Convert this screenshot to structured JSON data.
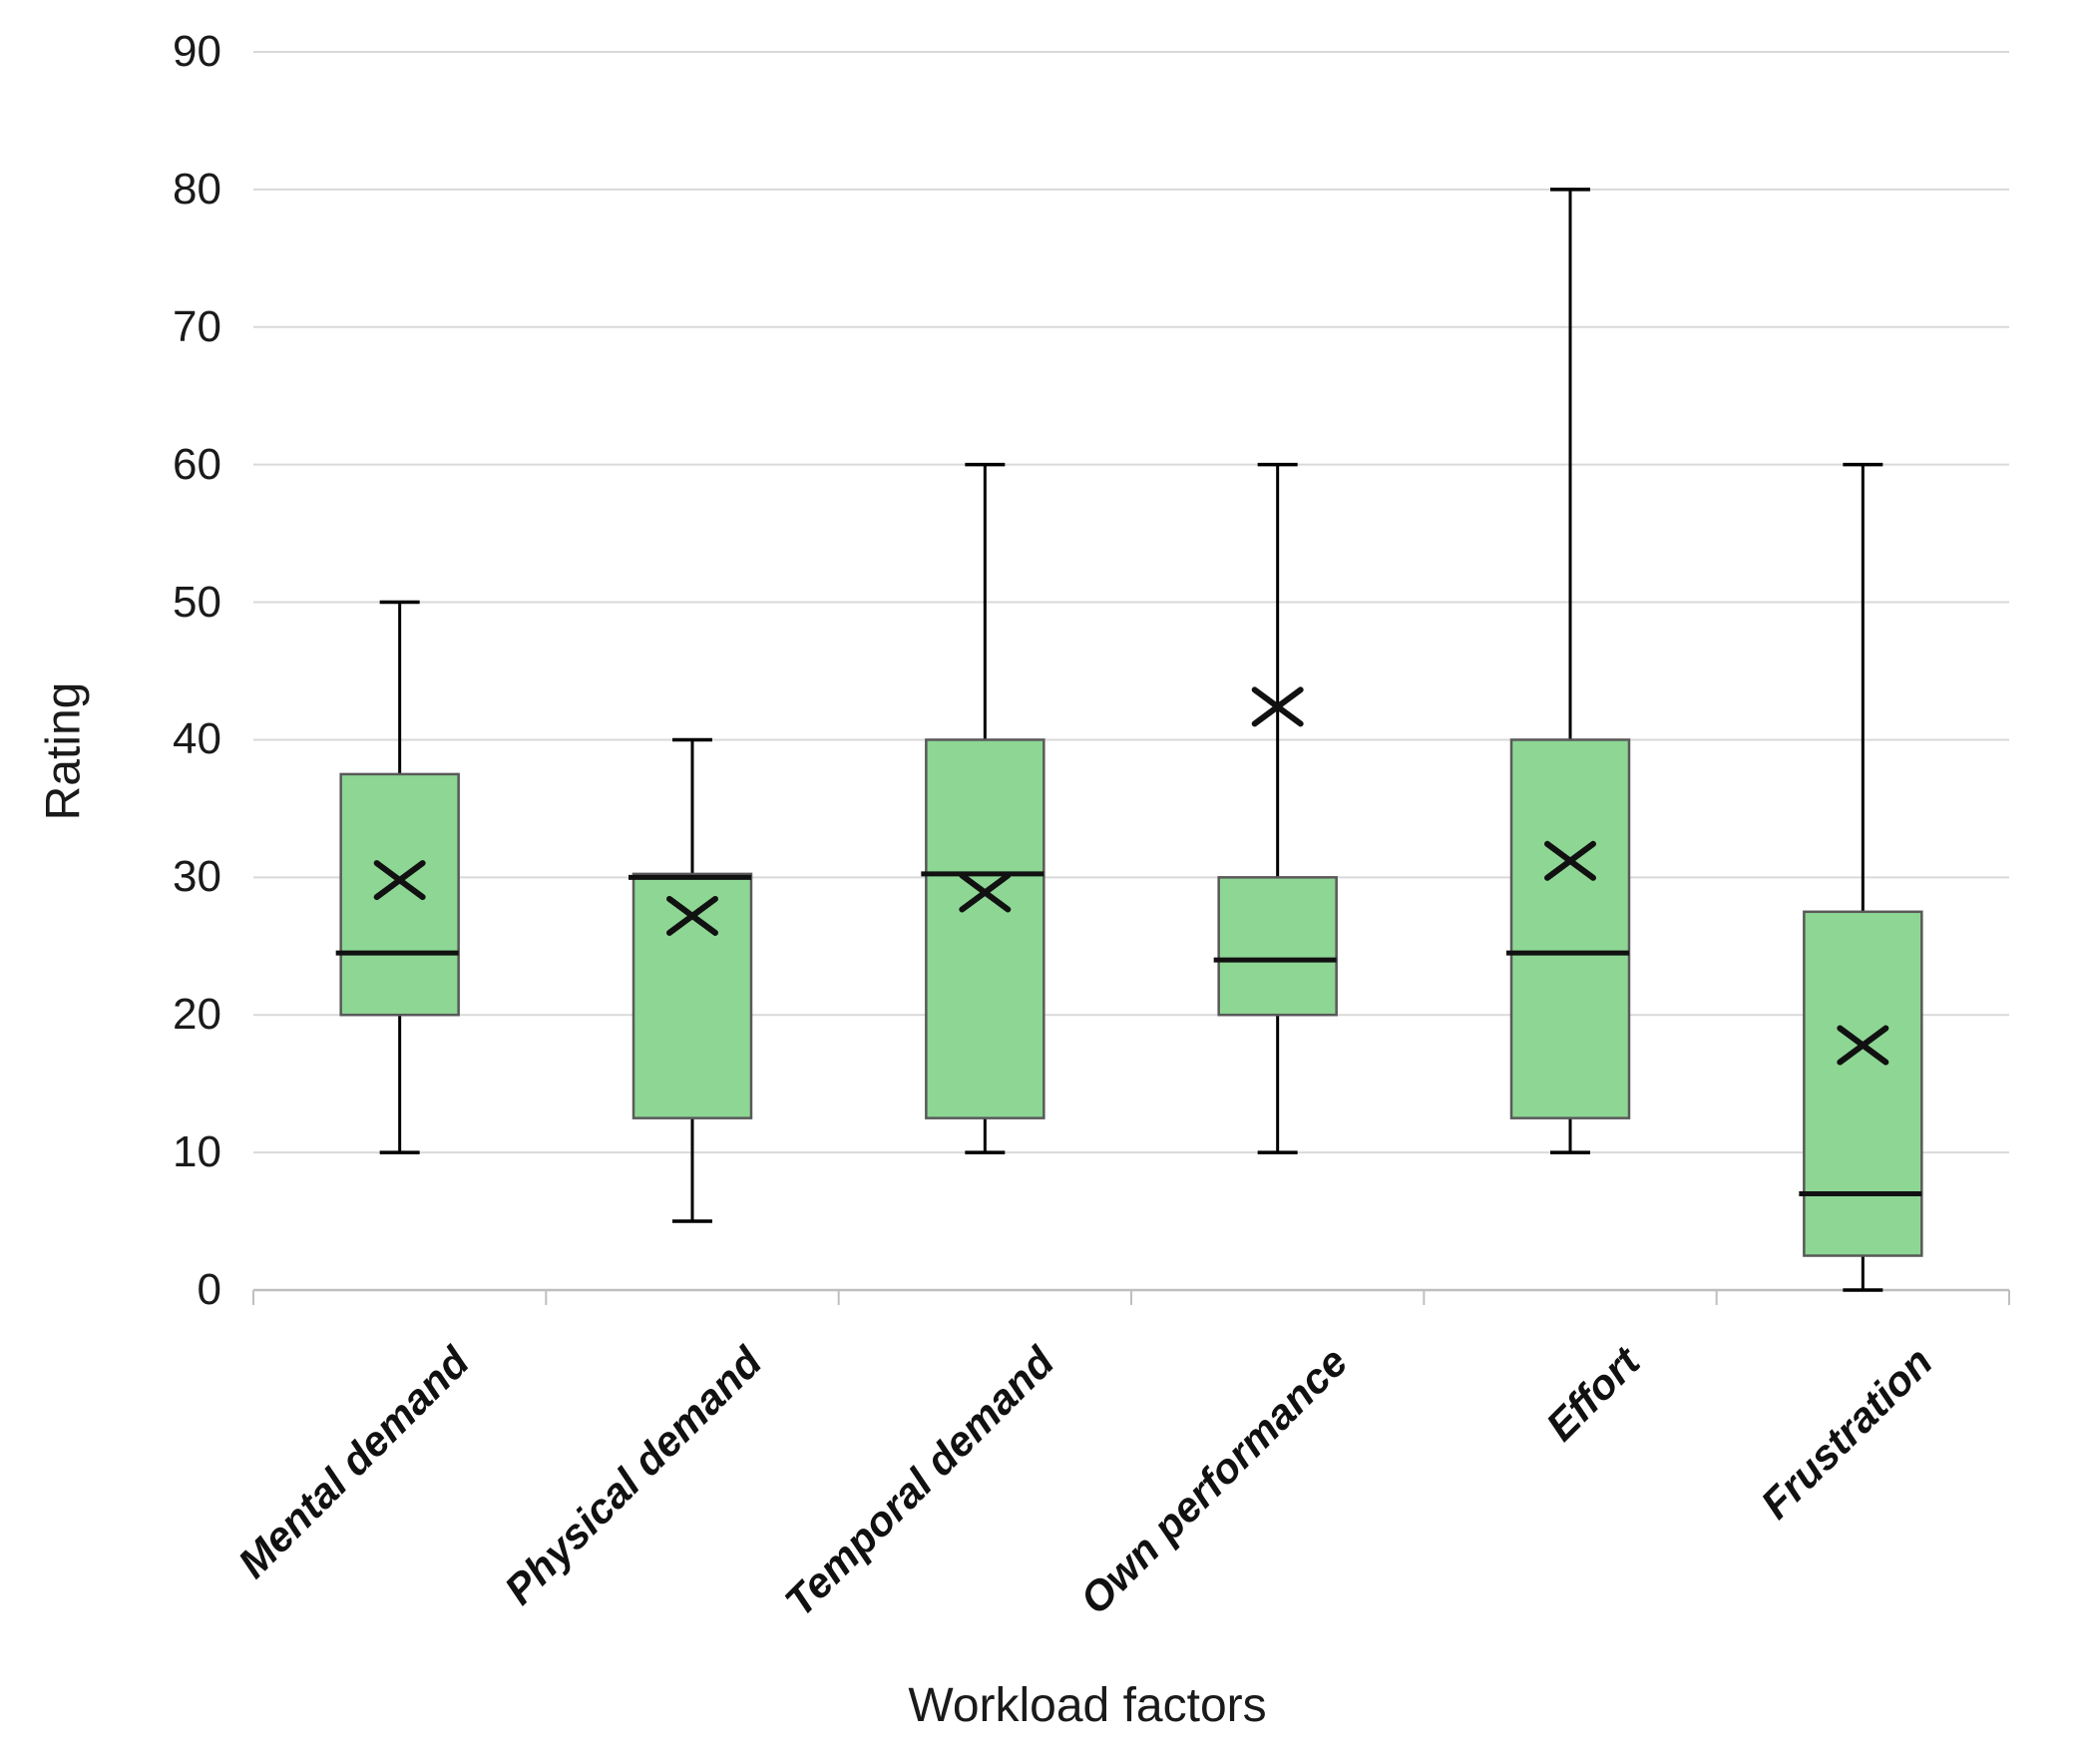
{
  "figure": {
    "background": "#ffffff"
  },
  "chart_data": {
    "type": "box",
    "title": "",
    "xlabel": "Workload factors",
    "ylabel": "Rating",
    "ylim": [
      0,
      90
    ],
    "y_ticks": [
      0,
      10,
      20,
      30,
      40,
      50,
      60,
      70,
      80,
      90
    ],
    "grid": true,
    "legend": "none",
    "categories": [
      "Mental demand",
      "Physical demand",
      "Temporal demand",
      "Own performance",
      "Effort",
      "Frustration"
    ],
    "boxes": [
      {
        "category": "Mental demand",
        "min": 10,
        "q1": 20,
        "median": 24.5,
        "q3": 37.5,
        "max": 50,
        "mean": 29.8
      },
      {
        "category": "Physical demand",
        "min": 5,
        "q1": 12.5,
        "median": 30,
        "q3": 30.25,
        "max": 40,
        "mean": 27.2
      },
      {
        "category": "Temporal demand",
        "min": 10,
        "q1": 12.5,
        "median": 30.25,
        "q3": 40,
        "max": 60,
        "mean": 28.9
      },
      {
        "category": "Own performance",
        "min": 10,
        "q1": 20,
        "median": 24,
        "q3": 30,
        "max": 60,
        "mean": 42.4
      },
      {
        "category": "Effort",
        "min": 10,
        "q1": 12.5,
        "median": 24.5,
        "q3": 40,
        "max": 80,
        "mean": 31.2
      },
      {
        "category": "Frustration",
        "min": 0,
        "q1": 2.5,
        "median": 7,
        "q3": 27.5,
        "max": 60,
        "mean": 17.8
      }
    ],
    "marker_meaning": "x marker shows the mean",
    "colors": {
      "box_fill": "#8dd694",
      "box_border": "#595959",
      "median_line": "#111111",
      "whisker": "#000000",
      "mean_marker": "#111111",
      "gridline": "#d9d9d9",
      "axis_line": "#bfbfbf",
      "text": "#1a1a1a"
    }
  }
}
